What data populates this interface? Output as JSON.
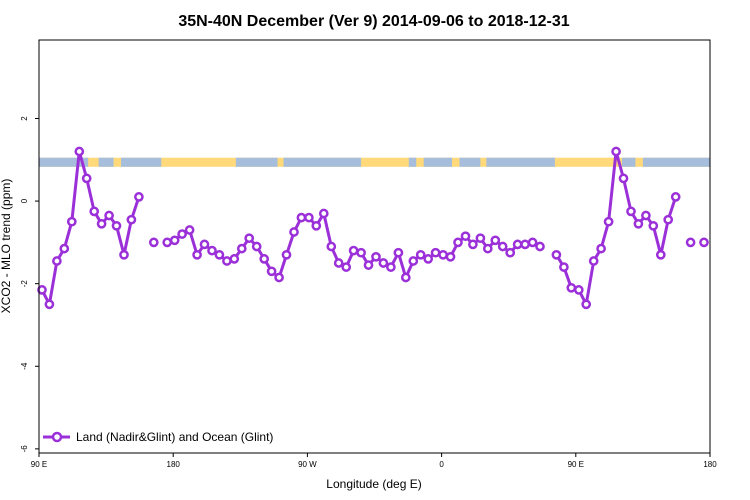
{
  "chart_data": {
    "type": "line",
    "title": "35N-40N December (Ver 9)   2014-09-06 to 2018-12-31",
    "xlabel": "Longitude (deg E)",
    "ylabel": "XCO2 - MLO trend (ppm)",
    "xlim": [
      90,
      540
    ],
    "ylim": [
      -6.1,
      3.9
    ],
    "x_ticks": [
      {
        "value": 90,
        "label": "90 E"
      },
      {
        "value": 180,
        "label": "180"
      },
      {
        "value": 270,
        "label": "90 W"
      },
      {
        "value": 360,
        "label": "0"
      },
      {
        "value": 450,
        "label": "90 E"
      },
      {
        "value": 540,
        "label": "180"
      }
    ],
    "y_ticks": [
      {
        "value": -6,
        "label": "-6"
      },
      {
        "value": -4,
        "label": "-4"
      },
      {
        "value": -2,
        "label": "-2"
      },
      {
        "value": 0,
        "label": "0"
      },
      {
        "value": 2,
        "label": "2"
      }
    ],
    "legend": {
      "label": "Land (Nadir&Glint) and Ocean (Glint)",
      "position": "bottom-left"
    },
    "colors": {
      "series": "#9B30D9",
      "land": "#FFD97A",
      "ocean": "#A6BDDB"
    },
    "series": [
      {
        "segments": [
          [
            [
              92,
              -2.15
            ],
            [
              97,
              -2.5
            ],
            [
              102,
              -1.45
            ],
            [
              107,
              -1.15
            ],
            [
              112,
              -0.5
            ],
            [
              117,
              1.2
            ],
            [
              122,
              0.55
            ],
            [
              127,
              -0.25
            ],
            [
              132,
              -0.55
            ],
            [
              137,
              -0.35
            ],
            [
              142,
              -0.6
            ],
            [
              147,
              -1.3
            ],
            [
              152,
              -0.45
            ],
            [
              157,
              0.1
            ]
          ],
          [
            [
              167,
              -1.0
            ]
          ],
          [
            [
              176,
              -1.0
            ],
            [
              181,
              -0.95
            ],
            [
              186,
              -0.8
            ],
            [
              191,
              -0.7
            ],
            [
              196,
              -1.3
            ],
            [
              201,
              -1.05
            ],
            [
              206,
              -1.2
            ],
            [
              211,
              -1.3
            ],
            [
              216,
              -1.45
            ],
            [
              221,
              -1.4
            ],
            [
              226,
              -1.15
            ],
            [
              231,
              -0.9
            ],
            [
              236,
              -1.1
            ],
            [
              241,
              -1.4
            ],
            [
              246,
              -1.7
            ],
            [
              251,
              -1.85
            ],
            [
              256,
              -1.3
            ],
            [
              261,
              -0.75
            ],
            [
              266,
              -0.4
            ],
            [
              271,
              -0.4
            ],
            [
              276,
              -0.6
            ],
            [
              281,
              -0.3
            ],
            [
              286,
              -1.1
            ],
            [
              291,
              -1.5
            ],
            [
              296,
              -1.6
            ],
            [
              301,
              -1.2
            ],
            [
              306,
              -1.25
            ],
            [
              311,
              -1.55
            ],
            [
              316,
              -1.35
            ],
            [
              321,
              -1.5
            ],
            [
              326,
              -1.6
            ],
            [
              331,
              -1.25
            ],
            [
              336,
              -1.85
            ],
            [
              341,
              -1.45
            ],
            [
              346,
              -1.3
            ],
            [
              351,
              -1.4
            ],
            [
              356,
              -1.25
            ],
            [
              361,
              -1.3
            ],
            [
              366,
              -1.35
            ],
            [
              371,
              -1.0
            ],
            [
              376,
              -0.85
            ],
            [
              381,
              -1.05
            ],
            [
              386,
              -0.9
            ],
            [
              391,
              -1.15
            ],
            [
              396,
              -0.95
            ],
            [
              401,
              -1.1
            ],
            [
              406,
              -1.25
            ],
            [
              411,
              -1.05
            ],
            [
              416,
              -1.05
            ],
            [
              421,
              -1.0
            ],
            [
              426,
              -1.1
            ]
          ],
          [
            [
              437,
              -1.3
            ],
            [
              442,
              -1.6
            ],
            [
              447,
              -2.1
            ],
            [
              452,
              -2.15
            ],
            [
              457,
              -2.5
            ],
            [
              462,
              -1.45
            ],
            [
              467,
              -1.15
            ],
            [
              472,
              -0.5
            ],
            [
              477,
              1.2
            ],
            [
              482,
              0.55
            ],
            [
              487,
              -0.25
            ],
            [
              492,
              -0.55
            ],
            [
              497,
              -0.35
            ],
            [
              502,
              -0.6
            ],
            [
              507,
              -1.3
            ],
            [
              512,
              -0.45
            ],
            [
              517,
              0.1
            ]
          ],
          [
            [
              527,
              -1.0
            ]
          ],
          [
            [
              536,
              -1.0
            ]
          ]
        ]
      }
    ]
  }
}
